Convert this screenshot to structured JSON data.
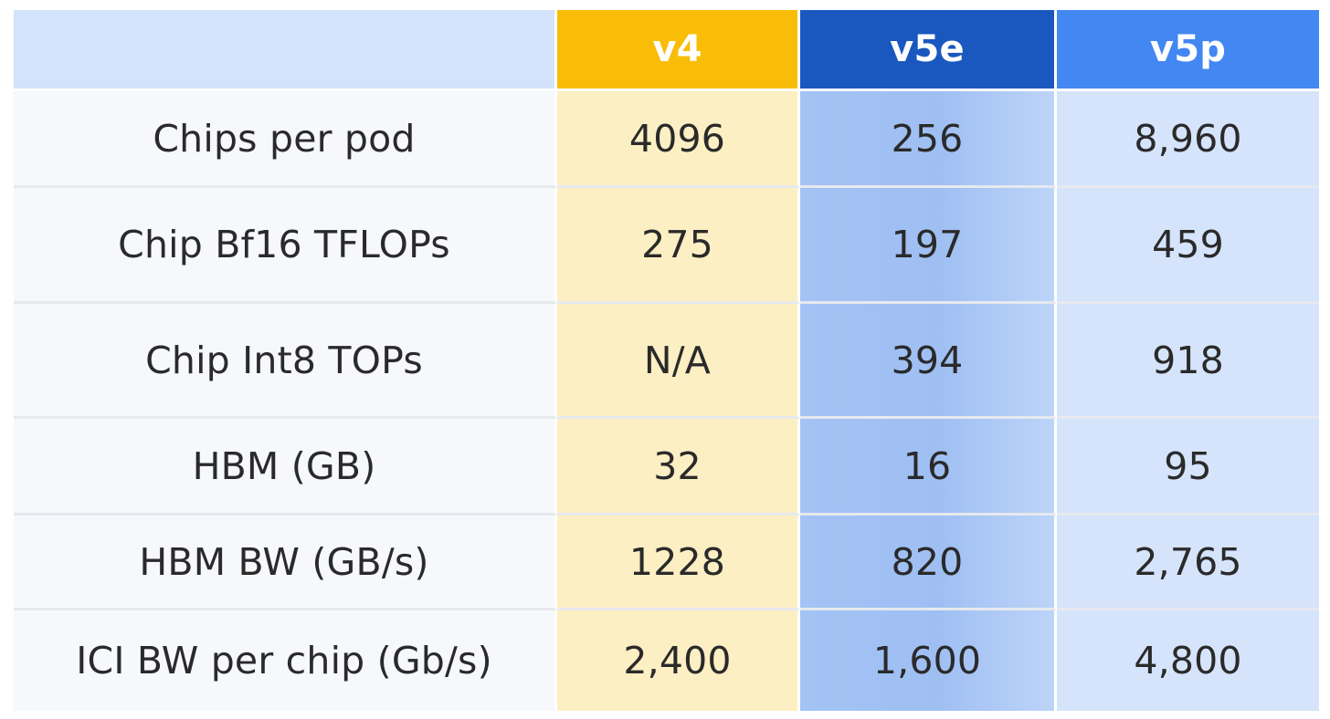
{
  "chart_data": {
    "type": "table",
    "columns": [
      "",
      "v4",
      "v5e",
      "v5p"
    ],
    "rows": [
      {
        "label": "Chips per pod",
        "values": [
          "4096",
          "256",
          "8,960"
        ]
      },
      {
        "label": "Chip Bf16 TFLOPs",
        "values": [
          "275",
          "197",
          "459"
        ]
      },
      {
        "label": "Chip Int8 TOPs",
        "values": [
          "N/A",
          "394",
          "918"
        ]
      },
      {
        "label": "HBM (GB)",
        "values": [
          "32",
          "16",
          "95"
        ]
      },
      {
        "label": "HBM BW (GB/s)",
        "values": [
          "1228",
          "820",
          "2,765"
        ]
      },
      {
        "label": "ICI BW per chip (Gb/s)",
        "values": [
          "2,400",
          "1,600",
          "4,800"
        ]
      }
    ]
  },
  "colors": {
    "v4_header": "#f9bd08",
    "v5e_header": "#1a58c0",
    "v5p_header": "#4287f2",
    "corner_header": "#d3e3fb",
    "v4_body": "#fdefc4",
    "v5e_body": "#a3c3f5",
    "v5p_body": "#d5e4fb"
  }
}
